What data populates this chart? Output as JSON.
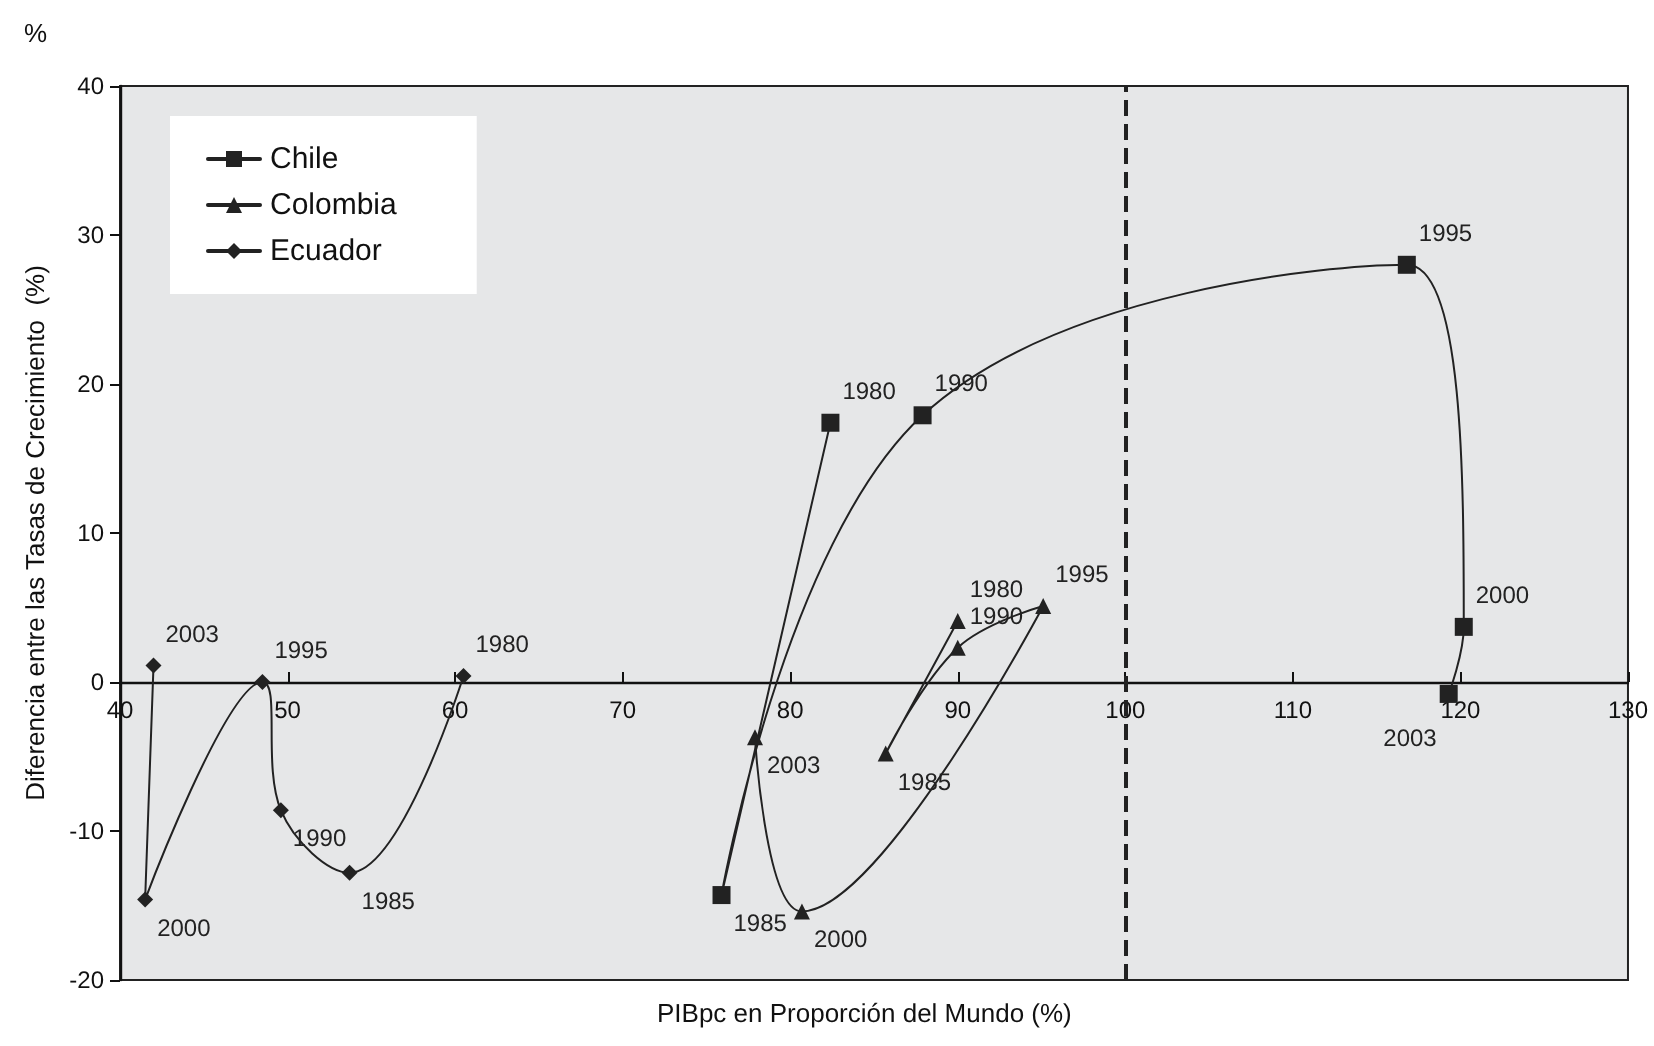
{
  "chart_data": {
    "type": "line",
    "xlabel": "PIBpc en Proporción del Mundo (%)",
    "ylabel": "Diferencia entre las Tasas de Crecimiento  (%)",
    "annotations": [
      "%",
      {
        "text": "1980",
        "x": 82.4,
        "y": 17.4
      },
      {
        "text": "1985",
        "x": 75.9,
        "y": -14.3
      },
      {
        "text": "1990",
        "x": 87.9,
        "y": 17.9
      },
      {
        "text": "1995",
        "x": 116.8,
        "y": 28.0
      },
      {
        "text": "2000",
        "x": 120.2,
        "y": 3.7
      },
      {
        "text": "2003",
        "x": 119.3,
        "y": -0.8
      },
      {
        "text": "1980",
        "x": 90.0,
        "y": 4.1
      },
      {
        "text": "1985",
        "x": 85.7,
        "y": -4.8
      },
      {
        "text": "1990",
        "x": 90.0,
        "y": 2.3
      },
      {
        "text": "1995",
        "x": 95.1,
        "y": 5.1
      },
      {
        "text": "2000",
        "x": 80.7,
        "y": -15.4
      },
      {
        "text": "2003",
        "x": 77.9,
        "y": -3.7
      },
      {
        "text": "1980",
        "x": 60.5,
        "y": 0.4
      },
      {
        "text": "1985",
        "x": 53.7,
        "y": -12.8
      },
      {
        "text": "1990",
        "x": 49.6,
        "y": -8.6
      },
      {
        "text": "1995",
        "x": 48.5,
        "y": 0.0
      },
      {
        "text": "2000",
        "x": 41.5,
        "y": -14.6
      },
      {
        "text": "2003",
        "x": 42.0,
        "y": 1.1
      }
    ],
    "series": [
      {
        "name": "Chile",
        "color": "#222222",
        "marker": "square",
        "x": [
          82.4,
          75.9,
          87.9,
          116.8,
          120.2,
          119.3
        ],
        "values": [
          17.4,
          -14.3,
          17.9,
          28.0,
          3.7,
          -0.8
        ]
      },
      {
        "name": "Colombia",
        "color": "#222222",
        "marker": "triangle",
        "x": [
          90.0,
          85.7,
          90.0,
          95.1,
          80.7,
          77.9
        ],
        "values": [
          4.1,
          -4.8,
          2.3,
          5.1,
          -15.4,
          -3.7
        ]
      },
      {
        "name": "Ecuador",
        "color": "#222222",
        "marker": "diamond",
        "x": [
          60.5,
          53.7,
          49.6,
          48.5,
          41.5,
          42.0
        ],
        "values": [
          0.4,
          -12.8,
          -8.6,
          0.0,
          -14.6,
          1.1
        ]
      }
    ],
    "xlim": [
      40,
      130
    ],
    "xticks": [
      40,
      50,
      60,
      70,
      80,
      90,
      100,
      110,
      120,
      130
    ],
    "ylim": [
      -20,
      40
    ],
    "yticks": [
      -20,
      -10,
      0,
      10,
      20,
      30,
      40
    ],
    "ref_lines": [
      {
        "axis": "x",
        "value": 100,
        "color": "#222222",
        "line_style": "dashed"
      }
    ],
    "legend": "top left",
    "grid": false
  }
}
